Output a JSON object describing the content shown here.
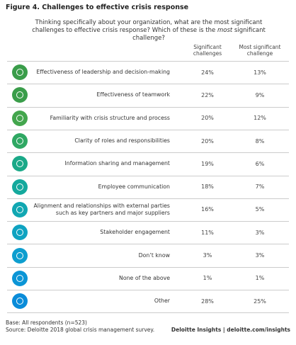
{
  "title": "Figure 4. Challenges to effective crisis response",
  "question": {
    "before": "Thinking specifically about your organization, what are the most significant challenges to effective crisis response? Which of these is the ",
    "emphasis": "most",
    "after": " significant challenge?"
  },
  "columns": [
    "Significant challenges",
    "Most significant challenge"
  ],
  "rows": [
    {
      "label": "Effectiveness of leadership and decision-making",
      "significant": "24%",
      "most": "13%"
    },
    {
      "label": "Effectiveness of teamwork",
      "significant": "22%",
      "most": "9%"
    },
    {
      "label": "Familiarity with crisis structure and process",
      "significant": "20%",
      "most": "12%"
    },
    {
      "label": "Clarity of roles and responsibilities",
      "significant": "20%",
      "most": "8%"
    },
    {
      "label": "Information sharing and management",
      "significant": "19%",
      "most": "6%"
    },
    {
      "label": "Employee communication",
      "significant": "18%",
      "most": "7%"
    },
    {
      "label": "Alignment and relationships with external parties such as key partners and major suppliers",
      "significant": "16%",
      "most": "5%"
    },
    {
      "label": "Stakeholder engagement",
      "significant": "11%",
      "most": "3%"
    },
    {
      "label": "Don’t know",
      "significant": "3%",
      "most": "3%"
    },
    {
      "label": "None of the above",
      "significant": "1%",
      "most": "1%"
    },
    {
      "label": "Other",
      "significant": "28%",
      "most": "25%"
    }
  ],
  "footer": {
    "base": "Base: All respondents (n=523)",
    "source": "Source: Deloitte 2018 global crisis management survey.",
    "brand": "Deloitte Insights | deloitte.com/insights"
  }
}
